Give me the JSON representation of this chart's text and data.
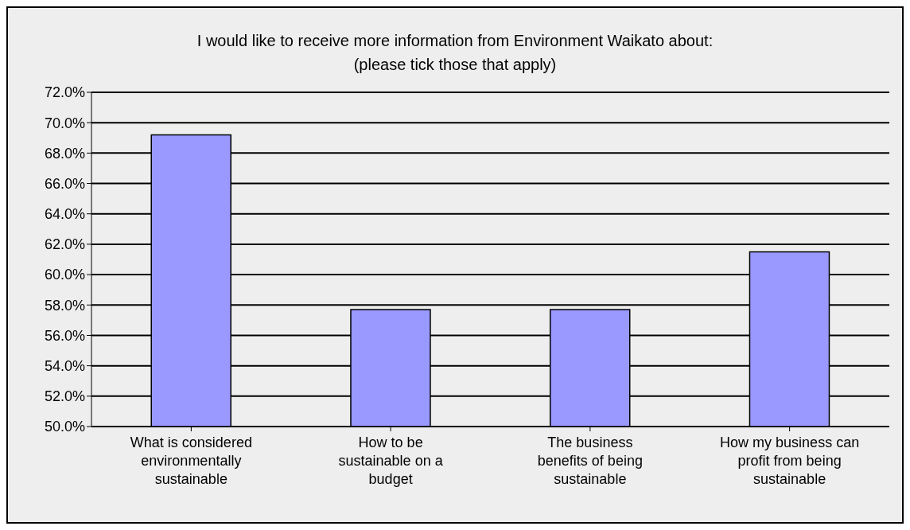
{
  "chart_data": {
    "type": "bar",
    "title": "I would like to receive more information from Environment Waikato about: (please tick those that apply)",
    "categories": [
      "What is considered environmentally sustainable",
      "How to be sustainable on a budget",
      "The business benefits of being sustainable",
      "How my business can profit from being sustainable"
    ],
    "values": [
      69.2,
      57.7,
      57.7,
      61.5
    ],
    "color": "#9999ff",
    "ylim": [
      50,
      72
    ],
    "yticks": [
      {
        "value": 50,
        "label": "50.0%"
      },
      {
        "value": 52,
        "label": "52.0%"
      },
      {
        "value": 54,
        "label": "54.0%"
      },
      {
        "value": 56,
        "label": "56.0%"
      },
      {
        "value": 58,
        "label": "58.0%"
      },
      {
        "value": 60,
        "label": "60.0%"
      },
      {
        "value": 62,
        "label": "62.0%"
      },
      {
        "value": 64,
        "label": "64.0%"
      },
      {
        "value": 66,
        "label": "66.0%"
      },
      {
        "value": 68,
        "label": "68.0%"
      },
      {
        "value": 70,
        "label": "70.0%"
      },
      {
        "value": 72,
        "label": "72.0%"
      }
    ],
    "grid": "y"
  }
}
